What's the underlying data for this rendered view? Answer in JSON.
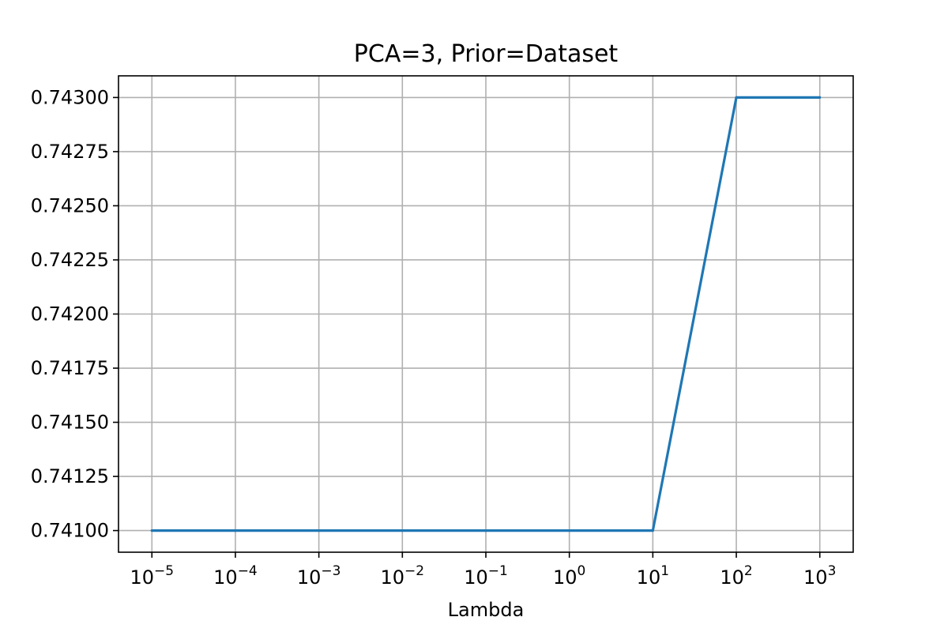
{
  "chart_data": {
    "type": "line",
    "title": "PCA=3, Prior=Dataset",
    "xlabel": "Lambda",
    "ylabel": "",
    "xscale": "log",
    "x": [
      1e-05,
      0.0001,
      0.001,
      0.01,
      0.1,
      1,
      10,
      100,
      1000
    ],
    "x_tick_labels": [
      {
        "base": "10",
        "exp": "−5"
      },
      {
        "base": "10",
        "exp": "−4"
      },
      {
        "base": "10",
        "exp": "−3"
      },
      {
        "base": "10",
        "exp": "−2"
      },
      {
        "base": "10",
        "exp": "−1"
      },
      {
        "base": "10",
        "exp": "0"
      },
      {
        "base": "10",
        "exp": "1"
      },
      {
        "base": "10",
        "exp": "2"
      },
      {
        "base": "10",
        "exp": "3"
      }
    ],
    "series": [
      {
        "values": [
          0.741,
          0.741,
          0.741,
          0.741,
          0.741,
          0.741,
          0.741,
          0.743,
          0.743
        ],
        "color": "#1f77b4"
      }
    ],
    "y_ticks": [
      0.741,
      0.74125,
      0.7415,
      0.74175,
      0.742,
      0.74225,
      0.7425,
      0.74275,
      0.743
    ],
    "y_tick_labels": [
      "0.74100",
      "0.74125",
      "0.74150",
      "0.74175",
      "0.74200",
      "0.74225",
      "0.74250",
      "0.74275",
      "0.74300"
    ],
    "ylim": [
      0.7409,
      0.7431
    ],
    "xlim_log10": [
      -5.4,
      3.4
    ],
    "grid": true,
    "grid_color": "#b0b0b0"
  }
}
